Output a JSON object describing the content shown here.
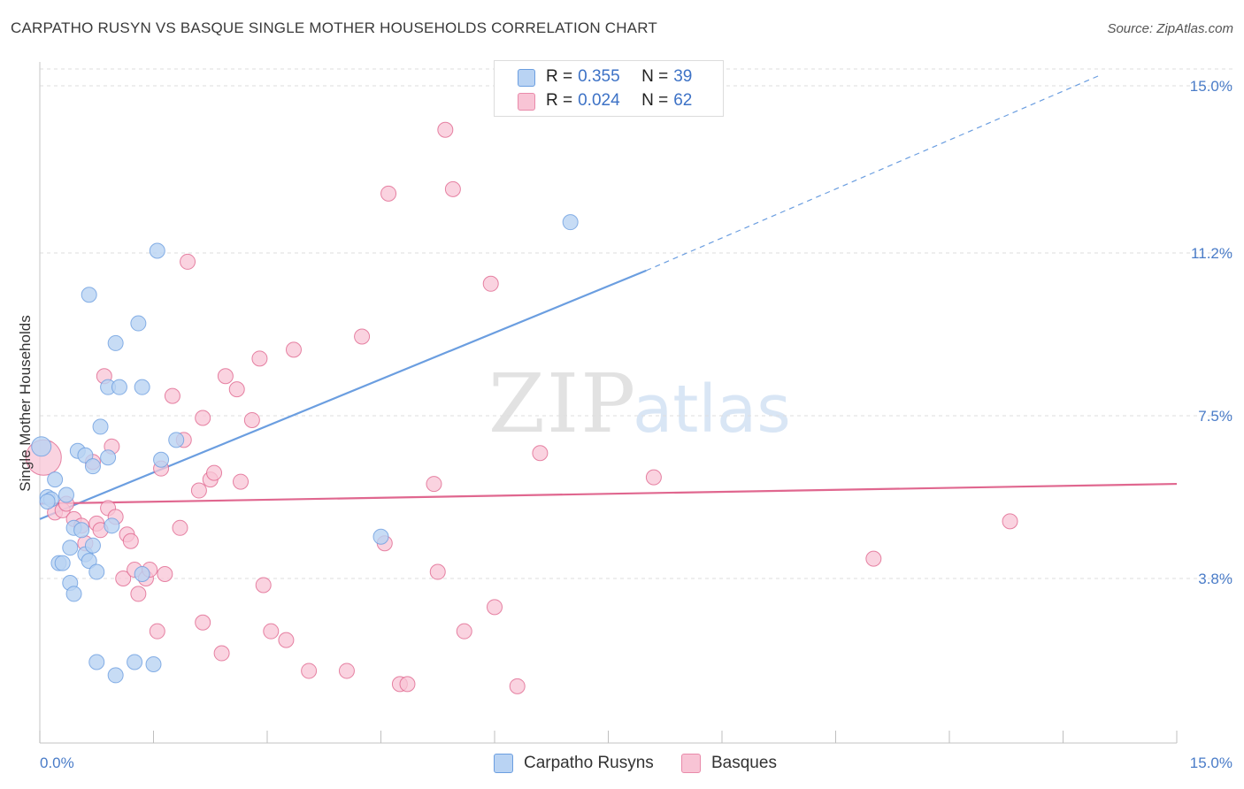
{
  "title": "CARPATHO RUSYN VS BASQUE SINGLE MOTHER HOUSEHOLDS CORRELATION CHART",
  "source": "Source: ZipAtlas.com",
  "watermark": {
    "zip": "ZIP",
    "atlas": "atlas"
  },
  "legend": {
    "rows": [
      {
        "r_label": "R =",
        "r_value": "0.355",
        "n_label": "N =",
        "n_value": "39",
        "fill": "#b9d3f3",
        "stroke": "#6b9ee0"
      },
      {
        "r_label": "R =",
        "r_value": "0.024",
        "n_label": "N =",
        "n_value": "62",
        "fill": "#f8c4d5",
        "stroke": "#e98aaa"
      }
    ]
  },
  "bottom_legend": [
    {
      "label": "Carpatho Rusyns",
      "fill": "#b9d3f3",
      "stroke": "#6b9ee0"
    },
    {
      "label": "Basques",
      "fill": "#f8c4d5",
      "stroke": "#e98aaa"
    }
  ],
  "chart_data": {
    "type": "scatter",
    "title": "CARPATHO RUSYN VS BASQUE SINGLE MOTHER HOUSEHOLDS CORRELATION CHART",
    "xlabel": "",
    "ylabel": "Single Mother Households",
    "xlim": [
      0,
      15
    ],
    "ylim": [
      0,
      15.5
    ],
    "x_tick_labels": [
      "0.0%",
      "15.0%"
    ],
    "y_ticks": [
      3.8,
      7.5,
      11.2,
      15.0
    ],
    "y_tick_labels": [
      "3.8%",
      "7.5%",
      "11.2%",
      "15.0%"
    ],
    "grid": true,
    "legend_position": "top-center",
    "series": [
      {
        "name": "Carpatho Rusyns",
        "color": "#6b9ee0",
        "fill": "#b9d3f3",
        "trend": {
          "x0": 0.0,
          "y0": 5.15,
          "x1": 8.0,
          "y1": 10.8,
          "dashed_to_x": 14.0,
          "dashed_to_y": 15.25
        },
        "points": [
          [
            0.02,
            6.8
          ],
          [
            0.1,
            5.65
          ],
          [
            0.15,
            5.6
          ],
          [
            0.2,
            6.05
          ],
          [
            0.25,
            4.15
          ],
          [
            0.3,
            4.15
          ],
          [
            0.35,
            5.7
          ],
          [
            0.4,
            4.5
          ],
          [
            0.45,
            4.95
          ],
          [
            0.4,
            3.7
          ],
          [
            0.45,
            3.45
          ],
          [
            0.5,
            6.7
          ],
          [
            0.55,
            4.9
          ],
          [
            0.6,
            4.35
          ],
          [
            0.65,
            4.2
          ],
          [
            0.6,
            6.6
          ],
          [
            0.7,
            4.55
          ],
          [
            0.65,
            10.25
          ],
          [
            0.75,
            3.95
          ],
          [
            0.7,
            6.35
          ],
          [
            0.8,
            7.25
          ],
          [
            0.75,
            1.9
          ],
          [
            0.9,
            8.15
          ],
          [
            0.9,
            6.55
          ],
          [
            0.95,
            5.0
          ],
          [
            1.0,
            1.6
          ],
          [
            1.0,
            9.15
          ],
          [
            1.05,
            8.15
          ],
          [
            1.25,
            1.9
          ],
          [
            1.3,
            9.6
          ],
          [
            1.35,
            8.15
          ],
          [
            1.35,
            3.9
          ],
          [
            1.5,
            1.85
          ],
          [
            1.55,
            11.25
          ],
          [
            1.6,
            6.5
          ],
          [
            1.8,
            6.95
          ],
          [
            4.5,
            4.75
          ],
          [
            7.0,
            11.9
          ],
          [
            0.1,
            5.55
          ]
        ]
      },
      {
        "name": "Basques",
        "color": "#e0678f",
        "fill": "#f8c4d5",
        "trend": {
          "x0": 0.0,
          "y0": 5.5,
          "x1": 15.0,
          "y1": 5.95
        },
        "points": [
          [
            0.05,
            6.55
          ],
          [
            0.2,
            5.3
          ],
          [
            0.3,
            5.35
          ],
          [
            0.35,
            5.5
          ],
          [
            0.45,
            5.15
          ],
          [
            0.55,
            5.0
          ],
          [
            0.6,
            4.6
          ],
          [
            0.7,
            6.45
          ],
          [
            0.75,
            5.05
          ],
          [
            0.8,
            4.9
          ],
          [
            0.85,
            8.4
          ],
          [
            0.9,
            5.4
          ],
          [
            0.95,
            6.8
          ],
          [
            1.0,
            5.2
          ],
          [
            1.1,
            3.8
          ],
          [
            1.15,
            4.8
          ],
          [
            1.2,
            4.65
          ],
          [
            1.25,
            4.0
          ],
          [
            1.3,
            3.45
          ],
          [
            1.4,
            3.8
          ],
          [
            1.45,
            4.0
          ],
          [
            1.55,
            2.6
          ],
          [
            1.6,
            6.3
          ],
          [
            1.65,
            3.9
          ],
          [
            1.75,
            7.95
          ],
          [
            1.85,
            4.95
          ],
          [
            1.9,
            6.95
          ],
          [
            1.95,
            11.0
          ],
          [
            2.1,
            5.8
          ],
          [
            2.15,
            7.45
          ],
          [
            2.15,
            2.8
          ],
          [
            2.25,
            6.05
          ],
          [
            2.3,
            6.2
          ],
          [
            2.4,
            2.1
          ],
          [
            2.45,
            8.4
          ],
          [
            2.6,
            8.1
          ],
          [
            2.65,
            6.0
          ],
          [
            2.8,
            7.4
          ],
          [
            2.9,
            8.8
          ],
          [
            2.95,
            3.65
          ],
          [
            3.05,
            2.6
          ],
          [
            3.25,
            2.4
          ],
          [
            3.35,
            9.0
          ],
          [
            3.55,
            1.7
          ],
          [
            4.05,
            1.7
          ],
          [
            4.25,
            9.3
          ],
          [
            4.55,
            4.6
          ],
          [
            4.6,
            12.55
          ],
          [
            4.75,
            1.4
          ],
          [
            4.85,
            1.4
          ],
          [
            5.2,
            5.95
          ],
          [
            5.25,
            3.95
          ],
          [
            5.35,
            14.0
          ],
          [
            5.45,
            12.65
          ],
          [
            5.6,
            2.6
          ],
          [
            5.95,
            10.5
          ],
          [
            6.0,
            3.15
          ],
          [
            6.3,
            1.35
          ],
          [
            6.6,
            6.65
          ],
          [
            8.1,
            6.1
          ],
          [
            11.0,
            4.25
          ],
          [
            12.8,
            5.1
          ]
        ]
      }
    ]
  }
}
